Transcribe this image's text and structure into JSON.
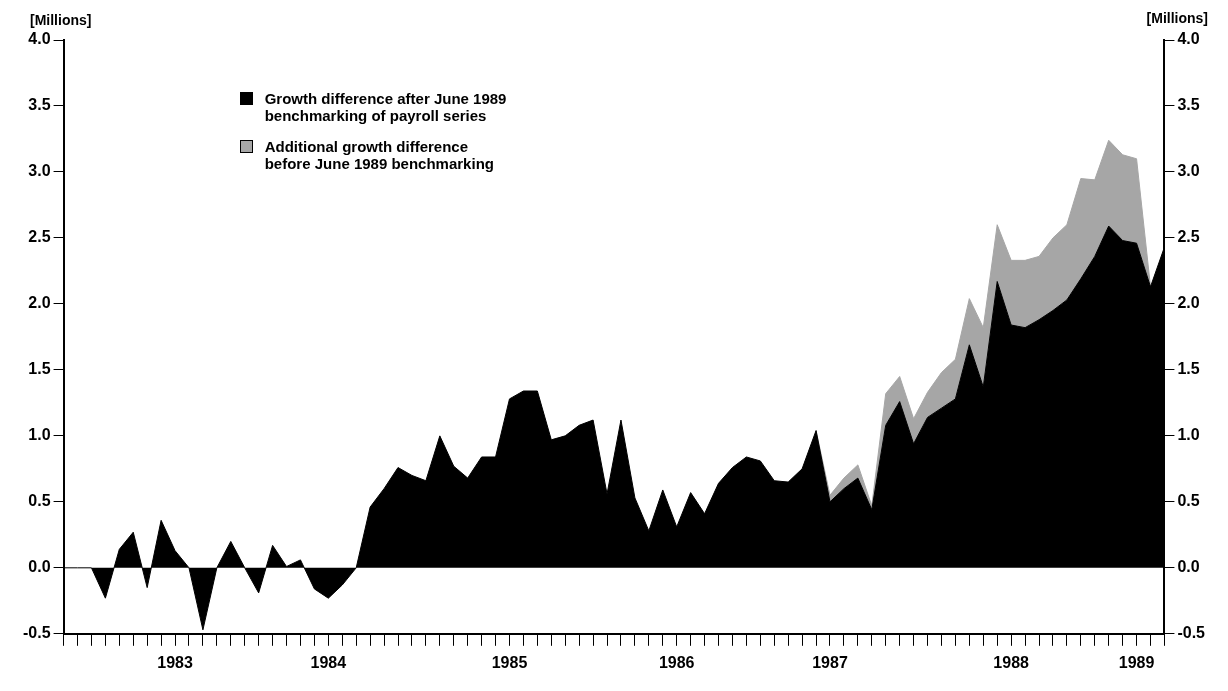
{
  "chart_data": {
    "type": "area",
    "stacked": true,
    "categories": [
      null,
      null,
      null,
      null,
      null,
      null,
      null,
      null,
      "1983",
      null,
      null,
      null,
      null,
      null,
      null,
      null,
      null,
      null,
      null,
      "1984",
      null,
      null,
      null,
      null,
      null,
      null,
      null,
      null,
      null,
      null,
      null,
      null,
      "1985",
      null,
      null,
      null,
      null,
      null,
      null,
      null,
      null,
      null,
      null,
      null,
      "1986",
      null,
      null,
      null,
      null,
      null,
      null,
      null,
      null,
      null,
      null,
      "1987",
      null,
      null,
      null,
      null,
      null,
      null,
      null,
      null,
      null,
      null,
      null,
      null,
      "1988",
      null,
      null,
      null,
      null,
      null,
      null,
      null,
      null,
      "1989",
      null,
      null
    ],
    "series": [
      {
        "name": "Growth difference after June 1989 benchmarking of payroll series",
        "color": "#000000",
        "values": [
          0,
          0,
          0,
          -0.23,
          0.14,
          0.27,
          -0.15,
          0.36,
          0.13,
          0,
          -0.47,
          0,
          0.2,
          0,
          -0.19,
          0.17,
          0.01,
          0.06,
          -0.16,
          -0.23,
          -0.13,
          0,
          0.46,
          0.6,
          0.76,
          0.7,
          0.66,
          1.0,
          0.77,
          0.68,
          0.84,
          0.84,
          1.28,
          1.34,
          1.34,
          0.97,
          1.0,
          1.08,
          1.12,
          0.56,
          1.12,
          0.53,
          0.28,
          0.59,
          0.31,
          0.57,
          0.41,
          0.64,
          0.76,
          0.84,
          0.81,
          0.66,
          0.65,
          0.75,
          1.04,
          0.5,
          0.6,
          0.68,
          0.44,
          1.08,
          1.26,
          0.94,
          1.14,
          1.21,
          1.28,
          1.69,
          1.37,
          2.17,
          1.84,
          1.82,
          1.88,
          1.95,
          2.03,
          2.19,
          2.36,
          2.59,
          2.48,
          2.46,
          2.13,
          2.43
        ]
      },
      {
        "name": "Additional growth difference before June 1989 benchmarking",
        "color": "#a6a6a6",
        "values": [
          null,
          null,
          null,
          null,
          null,
          null,
          null,
          null,
          null,
          null,
          null,
          null,
          null,
          null,
          null,
          null,
          null,
          null,
          null,
          null,
          null,
          null,
          null,
          null,
          null,
          null,
          null,
          null,
          null,
          null,
          null,
          null,
          null,
          null,
          null,
          null,
          null,
          null,
          null,
          null,
          null,
          null,
          null,
          null,
          null,
          null,
          null,
          null,
          null,
          null,
          null,
          null,
          null,
          null,
          0,
          0.05,
          0.08,
          0.1,
          0.03,
          0.24,
          0.19,
          0.19,
          0.19,
          0.27,
          0.3,
          0.35,
          0.45,
          0.43,
          0.49,
          0.51,
          0.48,
          0.55,
          0.57,
          0.76,
          0.58,
          0.65,
          0.65,
          0.64,
          0,
          null
        ]
      }
    ],
    "ylabel": "[Millions]",
    "y2label": "[Millions]",
    "ylim": [
      -0.5,
      4.0
    ],
    "yticks": [
      {
        "value": -0.5,
        "label": "-0.5"
      },
      {
        "value": 0,
        "label": "0.0"
      },
      {
        "value": 0.5,
        "label": "0.5"
      },
      {
        "value": 1,
        "label": "1.0"
      },
      {
        "value": 1.5,
        "label": "1.5"
      },
      {
        "value": 2,
        "label": "2.0"
      },
      {
        "value": 2.5,
        "label": "2.5"
      },
      {
        "value": 3,
        "label": "3.0"
      },
      {
        "value": 3.5,
        "label": "3.5"
      },
      {
        "value": 4,
        "label": "4.0"
      }
    ],
    "y2lim": [
      -0.5,
      4.0
    ],
    "y2ticks": [
      {
        "value": -0.5,
        "label": "-0.5"
      },
      {
        "value": 0,
        "label": "0.0"
      },
      {
        "value": 0.5,
        "label": "0.5"
      },
      {
        "value": 1,
        "label": "1.0"
      },
      {
        "value": 1.5,
        "label": "1.5"
      },
      {
        "value": 2,
        "label": "2.0"
      },
      {
        "value": 2.5,
        "label": "2.5"
      },
      {
        "value": 3,
        "label": "3.0"
      },
      {
        "value": 3.5,
        "label": "3.5"
      },
      {
        "value": 4,
        "label": "4.0"
      }
    ],
    "legend": "top left",
    "grid": false,
    "marker": "none"
  }
}
